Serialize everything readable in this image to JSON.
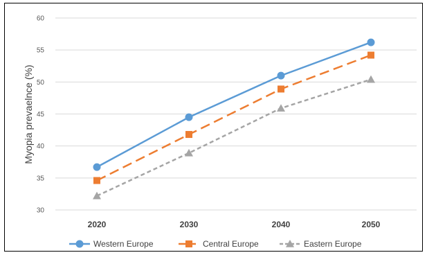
{
  "chart_data": {
    "type": "line",
    "categories": [
      "2020",
      "2030",
      "2040",
      "2050"
    ],
    "ylabel": "Myopia prevaelnce (%)",
    "xlabel": "",
    "ylim": [
      30,
      60
    ],
    "yticks": [
      "30",
      "35",
      "40",
      "45",
      "50",
      "55",
      "60"
    ],
    "grid": true,
    "legend_position": "bottom",
    "series": [
      {
        "name": "Western Europe",
        "values": [
          36.7,
          44.5,
          51.0,
          56.2
        ],
        "color": "#5b9bd5",
        "marker": "circle",
        "dash": "solid"
      },
      {
        "name": "Central Europe",
        "values": [
          34.6,
          41.8,
          48.9,
          54.2
        ],
        "color": "#ed7d31",
        "marker": "square",
        "dash": "long-dash"
      },
      {
        "name": "Eastern Europe",
        "values": [
          32.2,
          38.9,
          45.9,
          50.4
        ],
        "color": "#a5a5a5",
        "marker": "triangle",
        "dash": "short-dash"
      }
    ]
  }
}
